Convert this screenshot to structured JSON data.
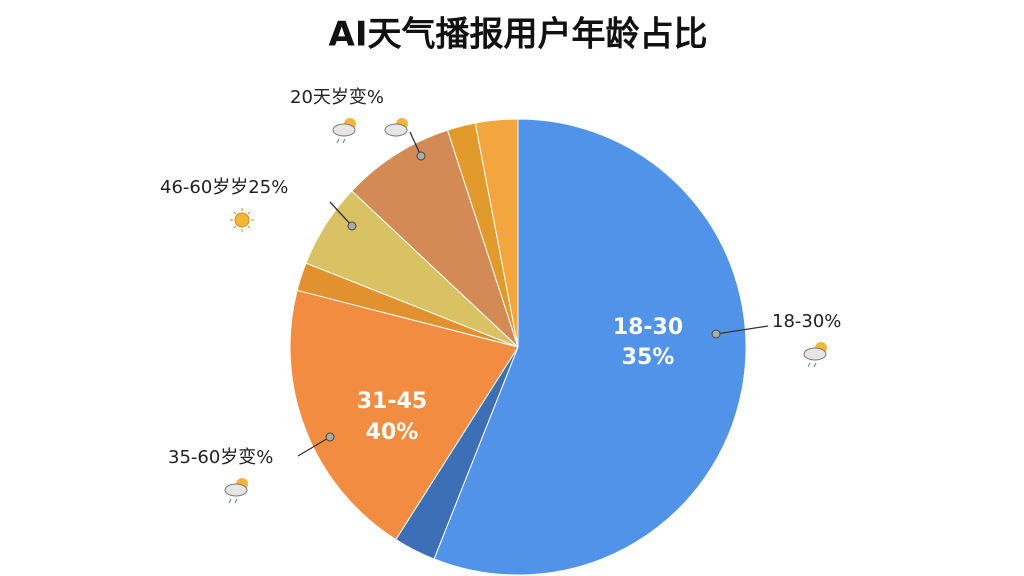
{
  "chart_data": {
    "type": "pie",
    "title": "AI天气播报用户年龄占比",
    "categories": [
      null,
      null,
      null,
      null,
      null,
      null,
      null,
      null
    ],
    "values": [
      56,
      3,
      20,
      2,
      6,
      8,
      2,
      3
    ],
    "colors": [
      "#5193e8",
      "#3d6fb6",
      "#f28c40",
      "#e3902e",
      "#d8c264",
      "#d48a55",
      "#e39a2c",
      "#f4a63e"
    ],
    "annotations": [
      "18-30",
      "35%",
      "31-45",
      "40%",
      "18-30%",
      "35-60岁变%",
      "46-60岁岁25%",
      "20天岁变%"
    ]
  }
}
